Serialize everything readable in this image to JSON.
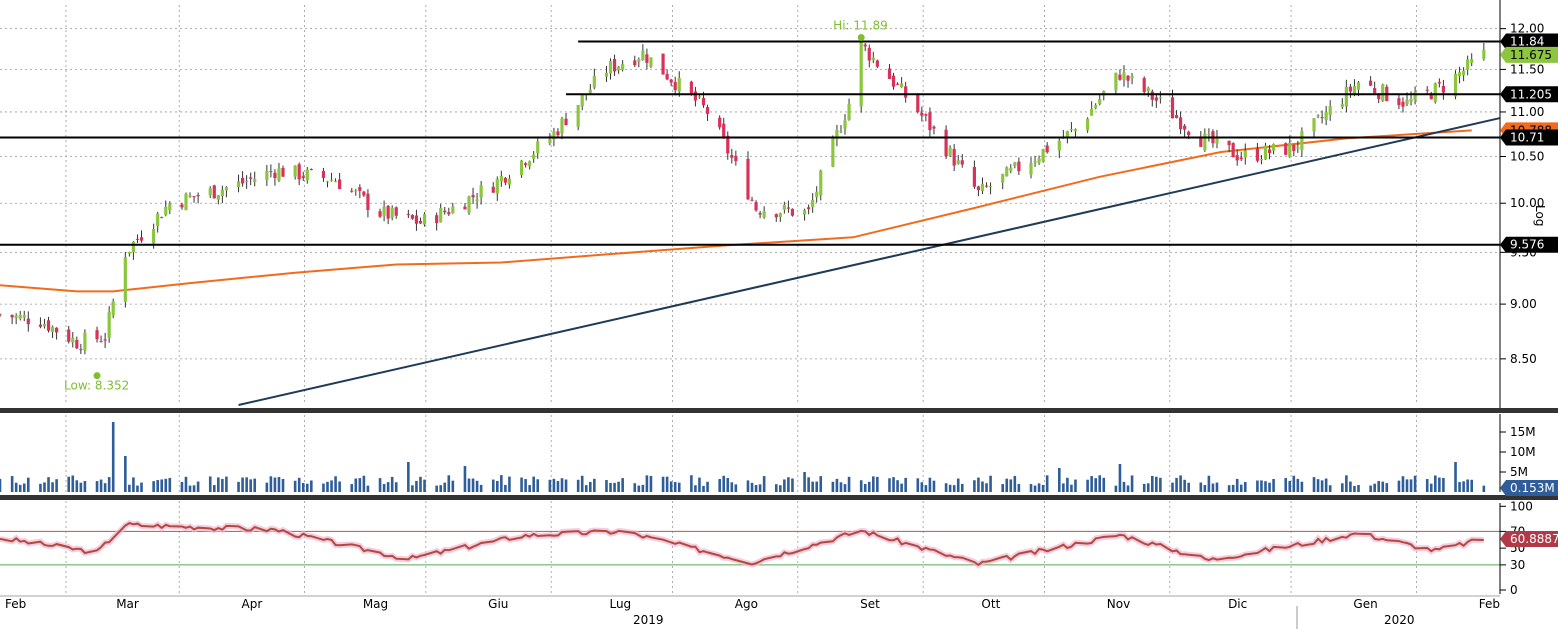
{
  "chart_data": [
    {
      "type": "candlestick",
      "scale": "log",
      "scale_label": "Log",
      "ylim": [
        8.1,
        12.3
      ],
      "x_range": [
        "2019-02-01",
        "2020-02-07"
      ],
      "y_ticks": [
        "8.50",
        "9.00",
        "9.50",
        "10.00",
        "10.50",
        "11.00",
        "11.50",
        "12.00"
      ],
      "annotations": {
        "high": {
          "label": "Hi: 11.89",
          "date": "2019-09-02",
          "value": 11.89
        },
        "low": {
          "label": "Low: 8.352",
          "date": "2019-02-25",
          "value": 8.352
        }
      },
      "horizontal_levels": [
        {
          "label": "11.84",
          "value": 11.84,
          "from_date": "2019-06-24"
        },
        {
          "label": "11.205",
          "value": 11.205,
          "from_date": "2019-06-21"
        },
        {
          "label": "10.71",
          "value": 10.71,
          "from_date": "2019-02-01"
        },
        {
          "label": "9.576",
          "value": 9.576,
          "from_date": "2019-02-01"
        }
      ],
      "last_price": {
        "label": "11.675",
        "value": 11.675
      },
      "moving_average": {
        "color": "#f26b1d",
        "tag_label": "10.788",
        "points": [
          {
            "date": "2019-02-01",
            "value": 9.18
          },
          {
            "date": "2019-02-20",
            "value": 9.12
          },
          {
            "date": "2019-03-01",
            "value": 9.12
          },
          {
            "date": "2019-03-20",
            "value": 9.2
          },
          {
            "date": "2019-04-15",
            "value": 9.3
          },
          {
            "date": "2019-05-10",
            "value": 9.38
          },
          {
            "date": "2019-06-05",
            "value": 9.4
          },
          {
            "date": "2019-07-01",
            "value": 9.48
          },
          {
            "date": "2019-07-31",
            "value": 9.57
          },
          {
            "date": "2019-08-31",
            "value": 9.65
          },
          {
            "date": "2019-09-30",
            "value": 9.95
          },
          {
            "date": "2019-10-31",
            "value": 10.28
          },
          {
            "date": "2019-11-30",
            "value": 10.55
          },
          {
            "date": "2019-12-31",
            "value": 10.7
          },
          {
            "date": "2020-01-31",
            "value": 10.79
          }
        ]
      },
      "trendline": {
        "color": "#1f3b57",
        "start": {
          "date": "2019-04-01",
          "value": 8.1
        },
        "end": {
          "date": "2020-02-07",
          "value": 10.93
        }
      },
      "candles_sampled": [
        {
          "date": "2019-02-01",
          "close": 8.9
        },
        {
          "date": "2019-02-11",
          "close": 8.85
        },
        {
          "date": "2019-02-20",
          "close": 8.65
        },
        {
          "date": "2019-02-27",
          "close": 8.7
        },
        {
          "date": "2019-03-04",
          "close": 9.5
        },
        {
          "date": "2019-03-15",
          "close": 10.0
        },
        {
          "date": "2019-04-01",
          "close": 10.2
        },
        {
          "date": "2019-04-10",
          "close": 10.35
        },
        {
          "date": "2019-04-25",
          "close": 10.25
        },
        {
          "date": "2019-05-06",
          "close": 9.9
        },
        {
          "date": "2019-05-16",
          "close": 9.8
        },
        {
          "date": "2019-05-24",
          "close": 9.95
        },
        {
          "date": "2019-06-03",
          "close": 10.2
        },
        {
          "date": "2019-06-17",
          "close": 10.7
        },
        {
          "date": "2019-07-01",
          "close": 11.5
        },
        {
          "date": "2019-07-10",
          "close": 11.7
        },
        {
          "date": "2019-07-26",
          "close": 11.0
        },
        {
          "date": "2019-08-07",
          "close": 9.95
        },
        {
          "date": "2019-08-20",
          "close": 9.9
        },
        {
          "date": "2019-08-30",
          "close": 11.1
        },
        {
          "date": "2019-09-02",
          "close": 11.8
        },
        {
          "date": "2019-09-18",
          "close": 10.9
        },
        {
          "date": "2019-10-01",
          "close": 10.1
        },
        {
          "date": "2019-10-10",
          "close": 10.35
        },
        {
          "date": "2019-10-25",
          "close": 10.8
        },
        {
          "date": "2019-11-05",
          "close": 11.45
        },
        {
          "date": "2019-11-15",
          "close": 11.1
        },
        {
          "date": "2019-11-25",
          "close": 10.7
        },
        {
          "date": "2019-12-05",
          "close": 10.5
        },
        {
          "date": "2019-12-18",
          "close": 10.6
        },
        {
          "date": "2020-01-03",
          "close": 11.35
        },
        {
          "date": "2020-01-15",
          "close": 11.1
        },
        {
          "date": "2020-01-24",
          "close": 11.3
        },
        {
          "date": "2020-02-03",
          "close": 11.675
        }
      ],
      "x_tick_labels": [
        "Feb",
        "Mar",
        "Apr",
        "Mag",
        "Giu",
        "Lug",
        "Ago",
        "Set",
        "Ott",
        "Nov",
        "Dic",
        "Gen",
        "Feb"
      ],
      "year_labels": [
        "2019",
        "2020"
      ]
    },
    {
      "type": "bar",
      "name": "volume",
      "color": "#2f5d99",
      "y_ticks": [
        "5M",
        "10M",
        "15M"
      ],
      "last_label": "0.153M",
      "spikes": [
        {
          "date": "2019-03-01",
          "value": 17.5
        },
        {
          "date": "2019-03-04",
          "value": 9.0
        },
        {
          "date": "2019-05-13",
          "value": 7.5
        },
        {
          "date": "2019-05-27",
          "value": 6.5
        },
        {
          "date": "2019-08-19",
          "value": 5.0
        },
        {
          "date": "2019-10-21",
          "value": 6.0
        },
        {
          "date": "2019-11-05",
          "value": 7.0
        },
        {
          "date": "2020-01-27",
          "value": 7.5
        }
      ],
      "typical_value": 2.5
    },
    {
      "type": "line",
      "name": "RSI",
      "color": "#b04a3a",
      "y_ticks": [
        "0",
        "30",
        "50",
        "70",
        "100"
      ],
      "reference_lines": [
        70,
        30
      ],
      "last_label": "60.8887",
      "points": [
        {
          "date": "2019-02-01",
          "value": 62
        },
        {
          "date": "2019-02-25",
          "value": 45
        },
        {
          "date": "2019-03-04",
          "value": 78
        },
        {
          "date": "2019-04-10",
          "value": 72
        },
        {
          "date": "2019-05-13",
          "value": 37
        },
        {
          "date": "2019-06-10",
          "value": 65
        },
        {
          "date": "2019-07-05",
          "value": 70
        },
        {
          "date": "2019-08-06",
          "value": 33
        },
        {
          "date": "2019-09-02",
          "value": 71
        },
        {
          "date": "2019-10-01",
          "value": 31
        },
        {
          "date": "2019-11-05",
          "value": 66
        },
        {
          "date": "2019-11-27",
          "value": 36
        },
        {
          "date": "2019-12-20",
          "value": 55
        },
        {
          "date": "2020-01-03",
          "value": 68
        },
        {
          "date": "2020-01-22",
          "value": 47
        },
        {
          "date": "2020-02-03",
          "value": 61
        }
      ]
    }
  ]
}
